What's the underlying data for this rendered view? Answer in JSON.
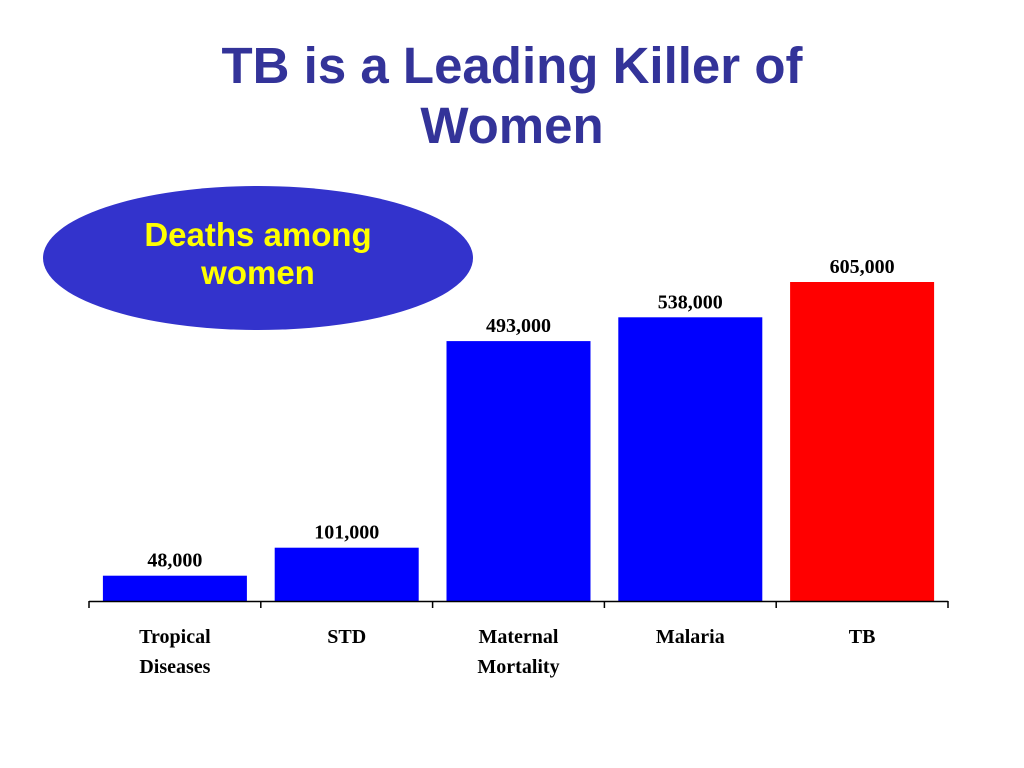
{
  "title": {
    "line1": "TB is a Leading Killer of",
    "line2": "Women"
  },
  "callout": {
    "line1": "Deaths among",
    "line2": "women"
  },
  "colors": {
    "title": "#333399",
    "callout_fill": "#3333cc",
    "callout_text": "#ffff00",
    "bar_default": "#0000ff",
    "bar_highlight": "#ff0000"
  },
  "chart_data": {
    "type": "bar",
    "categories": [
      [
        "Tropical",
        "Diseases"
      ],
      [
        "STD"
      ],
      [
        "Maternal",
        "Mortality"
      ],
      [
        "Malaria"
      ],
      [
        "TB"
      ]
    ],
    "values": [
      48000,
      101000,
      493000,
      538000,
      605000
    ],
    "value_labels": [
      "48,000",
      "101,000",
      "493,000",
      "538,000",
      "605,000"
    ],
    "highlight_index": 4,
    "ylim": [
      0,
      605000
    ],
    "grid": false,
    "legend": "none",
    "xlabel": "",
    "ylabel": ""
  }
}
